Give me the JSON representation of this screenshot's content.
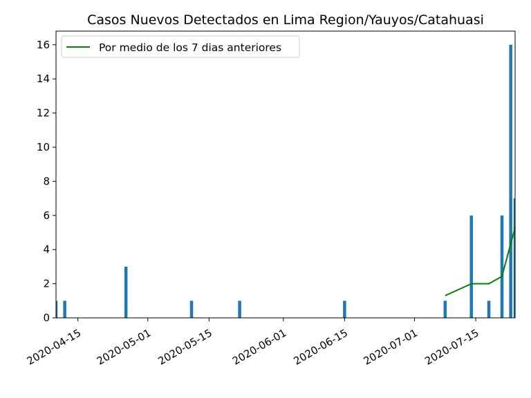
{
  "chart_data": {
    "type": "bar",
    "title": "Casos Nuevos Detectados en Lima Region/Yauyos/Catahuasi",
    "xlabel": "",
    "ylabel": "",
    "x_range": [
      "2020-04-10",
      "2020-07-24"
    ],
    "ylim": [
      0,
      16.8
    ],
    "yticks": [
      0,
      2,
      4,
      6,
      8,
      10,
      12,
      14,
      16
    ],
    "xticks": [
      "2020-04-15",
      "2020-05-01",
      "2020-05-15",
      "2020-06-01",
      "2020-06-15",
      "2020-07-01",
      "2020-07-15"
    ],
    "grid": false,
    "legend_position": "top-left",
    "bar_color": "#1f77b4",
    "line_color": "#008000",
    "bars": [
      {
        "date": "2020-04-10",
        "value": 1
      },
      {
        "date": "2020-04-12",
        "value": 1
      },
      {
        "date": "2020-04-26",
        "value": 3
      },
      {
        "date": "2020-05-11",
        "value": 1
      },
      {
        "date": "2020-05-22",
        "value": 1
      },
      {
        "date": "2020-06-15",
        "value": 1
      },
      {
        "date": "2020-07-08",
        "value": 1
      },
      {
        "date": "2020-07-14",
        "value": 6
      },
      {
        "date": "2020-07-18",
        "value": 1
      },
      {
        "date": "2020-07-21",
        "value": 6
      },
      {
        "date": "2020-07-23",
        "value": 16
      },
      {
        "date": "2020-07-24",
        "value": 7
      }
    ],
    "series": [
      {
        "name": "Por medio de los 7 dias anteriores",
        "type": "line",
        "points": [
          {
            "date": "2020-07-08",
            "value": 1.3
          },
          {
            "date": "2020-07-14",
            "value": 2.0
          },
          {
            "date": "2020-07-18",
            "value": 2.0
          },
          {
            "date": "2020-07-21",
            "value": 2.43
          },
          {
            "date": "2020-07-24",
            "value": 5.3
          }
        ]
      }
    ]
  }
}
